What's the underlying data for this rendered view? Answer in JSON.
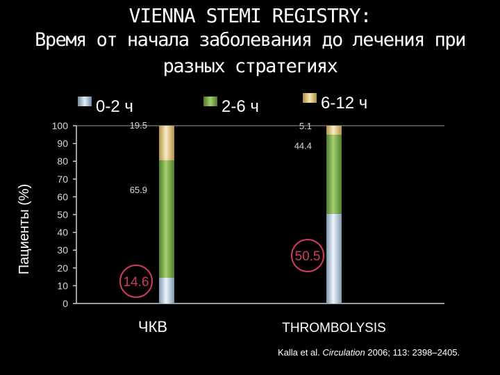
{
  "title": "VIENNA STEMI REGISTRY:",
  "subtitle_line1": "Время от начала заболевания до лечения при",
  "subtitle_line2": "разных стратегиях",
  "citation": {
    "prefix": "Kalla et al. ",
    "journal": "Circulation",
    "suffix": " 2006; 113: 2398–2405."
  },
  "colors": {
    "background": "#000000",
    "series_0_2": "#b8cee0",
    "series_2_6": "#7bb04a",
    "series_6_12": "#ecd08a",
    "highlight_circle": "#d23c5a"
  },
  "chart_data": {
    "type": "bar",
    "stacked": true,
    "categories": [
      "ЧКВ",
      "THROMBOLYSIS"
    ],
    "series": [
      {
        "name": "0-2 ч",
        "values": [
          14.6,
          50.5
        ]
      },
      {
        "name": "2-6 ч",
        "values": [
          65.9,
          44.4
        ]
      },
      {
        "name": "6-12 ч",
        "values": [
          19.5,
          5.1
        ]
      }
    ],
    "ylabel": "Пациенты (%)",
    "ylim": [
      0,
      100
    ],
    "yticks": [
      "0",
      "10",
      "20",
      "30",
      "40",
      "50",
      "60",
      "70",
      "80",
      "90",
      "100"
    ],
    "legend_position": "top",
    "grid": false,
    "highlighted_labels": [
      "14.6",
      "50.5"
    ]
  }
}
